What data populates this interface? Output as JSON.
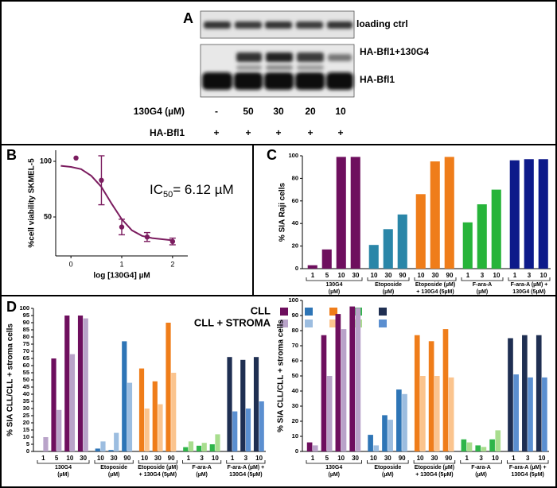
{
  "blot": {
    "panel_label": "A",
    "bands": [
      "loading ctrl",
      "HA-Bfl1+130G4",
      "HA-Bfl1"
    ],
    "rows": [
      {
        "label": "130G4 (µM)",
        "lanes": [
          "-",
          "50",
          "30",
          "20",
          "10"
        ]
      },
      {
        "label": "HA-Bfl1",
        "lanes": [
          "+",
          "+",
          "+",
          "+",
          "+"
        ]
      }
    ]
  },
  "chart_data": [
    {
      "type": "scatter",
      "panel_label": "B",
      "ylabel": "%cell viability SKMEL-5",
      "xlabel": "log [130G4] µM",
      "annotation": {
        "main": "IC",
        "sub": "50",
        "rest": "= 6.12 µM"
      },
      "color": "#7b1c5f",
      "xlim": [
        -0.3,
        2.3
      ],
      "xticks": [
        0,
        1,
        2
      ],
      "ylim": [
        15,
        110
      ],
      "yticks": [
        50,
        100
      ],
      "x": [
        0.1,
        0.6,
        1.0,
        1.5,
        2.0
      ],
      "values": [
        103,
        83,
        41,
        32,
        28
      ],
      "errors": [
        null,
        22,
        7,
        4,
        3
      ],
      "fit": {
        "x": [
          -0.2,
          0,
          0.2,
          0.4,
          0.6,
          0.8,
          1.0,
          1.2,
          1.4,
          1.6,
          1.8,
          2.0
        ],
        "values": [
          96,
          95,
          93,
          87,
          77,
          62,
          48,
          38,
          33,
          31,
          30,
          29
        ]
      }
    },
    {
      "type": "bar",
      "panel_label": "C",
      "ylabel": "% SIA Raji cells",
      "ylim": [
        0,
        100
      ],
      "yticks": [
        0,
        20,
        40,
        60,
        80,
        100
      ],
      "groups": [
        {
          "label": [
            "130G4",
            "(µM)"
          ],
          "categories": [
            "1",
            "5",
            "10",
            "30"
          ]
        },
        {
          "label": [
            "Etoposide",
            "(µM)"
          ],
          "categories": [
            "10",
            "30",
            "90"
          ]
        },
        {
          "label": [
            "Etoposide (µM)",
            "+ 130G4 (5µM)"
          ],
          "categories": [
            "10",
            "30",
            "90"
          ]
        },
        {
          "label": [
            "F-ara-A",
            "(µM)"
          ],
          "categories": [
            "1",
            "3",
            "10"
          ]
        },
        {
          "label": [
            "F-ara-A (µM) +",
            "130G4 (5µM)"
          ],
          "categories": [
            "1",
            "3",
            "10"
          ]
        }
      ],
      "series": [
        {
          "colors": [
            "#6e0f5e",
            "#2a86a8",
            "#ef7d1a",
            "#27b43a",
            "#0d1a8a"
          ],
          "values": [
            3,
            17,
            99,
            99,
            21,
            35,
            48,
            66,
            95,
            99,
            41,
            57,
            70,
            96,
            97,
            97
          ]
        }
      ]
    },
    {
      "type": "bar",
      "panel_label": "D",
      "ylabel": "% SIA CLL/CLL + stroma cells",
      "ylim": [
        0,
        100
      ],
      "yticks": [
        0,
        5,
        10,
        15,
        20,
        25,
        30,
        35,
        40,
        45,
        50,
        55,
        60,
        65,
        70,
        75,
        80,
        85,
        90,
        95,
        100
      ],
      "groups": [
        {
          "label": [
            "130G4",
            "(µM)"
          ],
          "categories": [
            "1",
            "5",
            "10",
            "30"
          ]
        },
        {
          "label": [
            "Etoposide",
            "(µM)"
          ],
          "categories": [
            "10",
            "30",
            "90"
          ]
        },
        {
          "label": [
            "Etoposide (µM)",
            "+ 130G4 (5µM)"
          ],
          "categories": [
            "10",
            "30",
            "90"
          ]
        },
        {
          "label": [
            "F-ara-A",
            "(µM)"
          ],
          "categories": [
            "1",
            "3",
            "10"
          ]
        },
        {
          "label": [
            "F-ara-A (µM) +",
            "130G4 (5µM)"
          ],
          "categories": [
            "1",
            "3",
            "10"
          ]
        }
      ],
      "series": [
        {
          "name": "CLL",
          "colors": [
            "#6e0f5e",
            "#2e75b6",
            "#ef7d1a",
            "#2fb54a",
            "#1f2f52"
          ],
          "values": [
            0,
            65,
            95,
            95,
            2,
            1,
            77,
            58,
            49,
            90,
            3,
            4,
            5,
            66,
            64,
            66
          ]
        },
        {
          "name": "CLL + STROMA",
          "colors": [
            "#b9a3c9",
            "#9cbde0",
            "#fbc48e",
            "#a8dd8e",
            "#5b8fd0"
          ],
          "values": [
            10,
            29,
            68,
            93,
            7,
            13,
            48,
            30,
            33,
            55,
            7,
            6,
            12,
            28,
            30,
            35
          ]
        }
      ]
    },
    {
      "type": "bar",
      "ylabel": "% SIA CLL/CLL + stroma cells",
      "ylim": [
        0,
        100
      ],
      "yticks": [
        0,
        10,
        20,
        30,
        40,
        50,
        60,
        70,
        80,
        90,
        100
      ],
      "groups": [
        {
          "label": [
            "130G4",
            "(µM)"
          ],
          "categories": [
            "1",
            "5",
            "10",
            "30"
          ]
        },
        {
          "label": [
            "Etoposide",
            "(µM)"
          ],
          "categories": [
            "10",
            "30",
            "90"
          ]
        },
        {
          "label": [
            "Etoposide (µM)",
            "+ 130G4 (5µM)"
          ],
          "categories": [
            "10",
            "30",
            "90"
          ]
        },
        {
          "label": [
            "F-ara-A",
            "(µM)"
          ],
          "categories": [
            "1",
            "3",
            "10"
          ]
        },
        {
          "label": [
            "F-ara-A (µM) +",
            "130G4 (5µM)"
          ],
          "categories": [
            "1",
            "3",
            "10"
          ]
        }
      ],
      "series": [
        {
          "colors": [
            "#6e0f5e",
            "#2e75b6",
            "#ef7d1a",
            "#2fb54a",
            "#1f2f52"
          ],
          "values": [
            6,
            77,
            91,
            96,
            11,
            24,
            41,
            77,
            73,
            81,
            8,
            4,
            8,
            75,
            77,
            77
          ]
        },
        {
          "colors": [
            "#b9a3c9",
            "#9cbde0",
            "#fbc48e",
            "#a8dd8e",
            "#5b8fd0"
          ],
          "values": [
            4,
            50,
            81,
            95,
            4,
            21,
            38,
            50,
            50,
            49,
            6,
            3,
            14,
            51,
            49,
            49
          ]
        }
      ]
    }
  ]
}
